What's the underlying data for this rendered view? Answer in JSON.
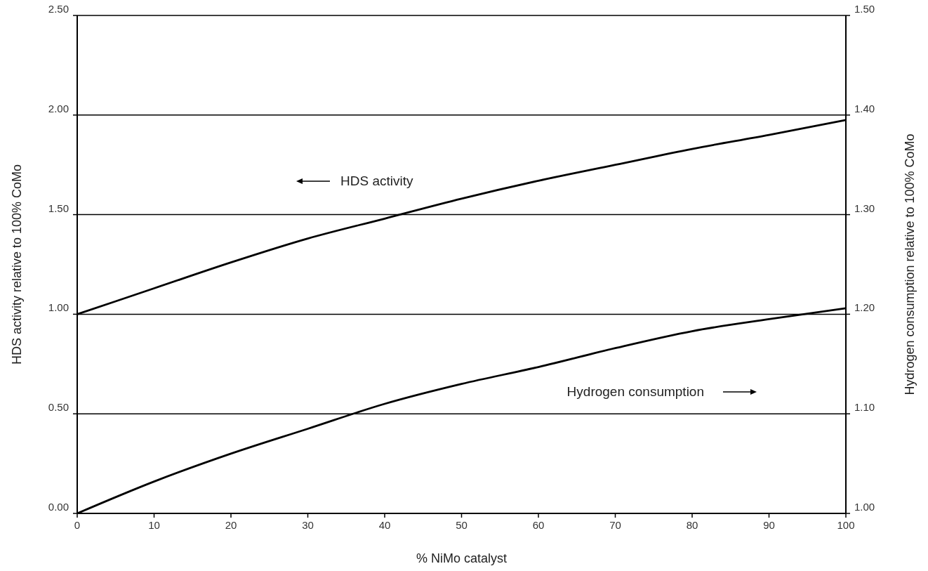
{
  "chart_data": {
    "type": "line",
    "xlabel": "% NiMo catalyst",
    "ylabel": "HDS activity relative to 100% CoMo",
    "y2label": "Hydrogen consumption relative to 100% CoMo",
    "x": [
      0,
      10,
      20,
      30,
      40,
      50,
      60,
      70,
      80,
      90,
      100
    ],
    "series": [
      {
        "name": "HDS activity",
        "color": "#000000",
        "values": [
          1.0,
          1.13,
          1.26,
          1.38,
          1.48,
          1.58,
          1.67,
          1.75,
          1.83,
          1.9,
          1.975
        ]
      },
      {
        "name": "Hydrogen consumption",
        "color": "#000000",
        "axis": "y2",
        "values": [
          1.0,
          1.032,
          1.06,
          1.085,
          1.11,
          1.13,
          1.147,
          1.166,
          1.183,
          1.195,
          1.206
        ]
      }
    ],
    "xlim": [
      0,
      100
    ],
    "xticks": [
      0,
      10,
      20,
      30,
      40,
      50,
      60,
      70,
      80,
      90,
      100
    ],
    "ylim": [
      0,
      2.5
    ],
    "yticks": [
      {
        "value": 0,
        "label": "0.00"
      },
      {
        "value": 0.5,
        "label": "0.50"
      },
      {
        "value": 1,
        "label": "1.00"
      },
      {
        "value": 1.5,
        "label": "1.50"
      },
      {
        "value": 2,
        "label": "2.00"
      },
      {
        "value": 2.5,
        "label": "2.50"
      }
    ],
    "y2lim": [
      1,
      1.5
    ],
    "y2ticks": [
      {
        "value": 1,
        "label": "1.00"
      },
      {
        "value": 1.1,
        "label": "1.10"
      },
      {
        "value": 1.2,
        "label": "1.20"
      },
      {
        "value": 1.3,
        "label": "1.30"
      },
      {
        "value": 1.4,
        "label": "1.40"
      },
      {
        "value": 1.5,
        "label": "1.50"
      }
    ],
    "grid": "y",
    "line_style": "solid"
  }
}
